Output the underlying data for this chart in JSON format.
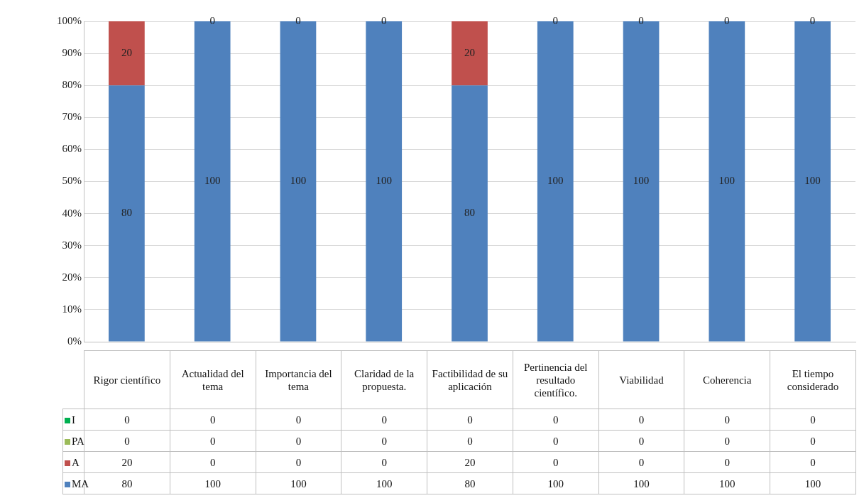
{
  "chart_data": [
    {
      "type": "bar",
      "stacked": true,
      "categories": [
        null,
        null,
        null,
        null,
        null,
        null,
        null,
        null,
        null
      ],
      "series": [
        {
          "color": "#4f81bd",
          "values": [
            80,
            100,
            100,
            100,
            80,
            100,
            100,
            100,
            100
          ],
          "value_labels": [
            "80",
            "100",
            "100",
            "100",
            "80",
            "100",
            "100",
            "100",
            "100"
          ]
        },
        {
          "color": "#c0504d",
          "values": [
            20,
            0,
            0,
            0,
            20,
            0,
            0,
            0,
            0
          ],
          "value_labels": [
            "20",
            "0",
            "0",
            "0",
            "20",
            "0",
            "0",
            "0",
            "0"
          ]
        },
        {
          "color": "#9bbb59",
          "values": [
            0,
            0,
            0,
            0,
            0,
            0,
            0,
            0,
            0
          ]
        },
        {
          "color": "#00b050",
          "values": [
            0,
            0,
            0,
            0,
            0,
            0,
            0,
            0,
            0
          ]
        }
      ],
      "ylim": [
        0,
        100
      ],
      "yticks": [
        {
          "value": 0,
          "label": "0%"
        },
        {
          "value": 10,
          "label": "10%"
        },
        {
          "value": 20,
          "label": "20%"
        },
        {
          "value": 30,
          "label": "30%"
        },
        {
          "value": 40,
          "label": "40%"
        },
        {
          "value": 50,
          "label": "50%"
        },
        {
          "value": 60,
          "label": "60%"
        },
        {
          "value": 70,
          "label": "70%"
        },
        {
          "value": 80,
          "label": "80%"
        },
        {
          "value": 90,
          "label": "90%"
        },
        {
          "value": 100,
          "label": "100%"
        }
      ],
      "grid": "y"
    },
    {
      "type": "other",
      "categories": [
        "Rigor científico",
        "Actualidad del tema",
        "Importancia del tema",
        "Claridad de la propuesta.",
        "Factibilidad de su aplicación",
        "Pertinencia del resultado científico.",
        "Viabilidad",
        "Coherencia",
        "El tiempo considerado"
      ],
      "series": [
        {
          "name": "I",
          "color": "#00b050",
          "values": [
            0,
            0,
            0,
            0,
            0,
            0,
            0,
            0,
            0
          ]
        },
        {
          "name": "PA",
          "color": "#9bbb59",
          "values": [
            0,
            0,
            0,
            0,
            0,
            0,
            0,
            0,
            0
          ]
        },
        {
          "name": "A",
          "color": "#c0504d",
          "values": [
            20,
            0,
            0,
            0,
            20,
            0,
            0,
            0,
            0
          ]
        },
        {
          "name": "MA",
          "color": "#4f81bd",
          "values": [
            80,
            100,
            100,
            100,
            80,
            100,
            100,
            100,
            100
          ]
        }
      ],
      "data_labels": true
    }
  ]
}
